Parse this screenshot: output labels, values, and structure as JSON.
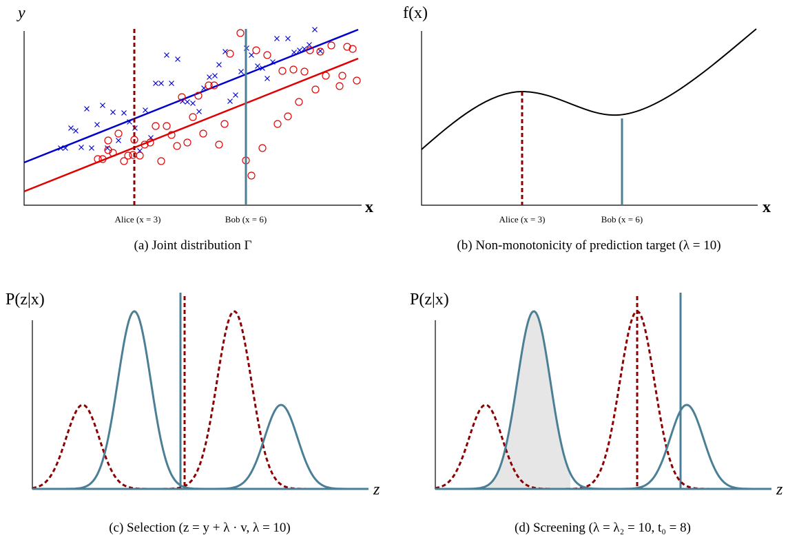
{
  "panels": [
    {
      "ylabel": "y",
      "xlabel": "x",
      "annotations": [
        "Alice (x = 3)",
        "Bob (x = 6)"
      ],
      "caption": "(a)  Joint distribution Γ"
    },
    {
      "ylabel": "f(x)",
      "xlabel": "x",
      "annotations": [
        "Alice (x = 3)",
        "Bob (x = 6)"
      ],
      "caption": "(b)  Non-monotonicity of prediction target (λ = 10)"
    },
    {
      "ylabel": "P(z|x)",
      "xlabel": "z",
      "caption": "(c)  Selection (z = y + λ · v, λ = 10)"
    },
    {
      "ylabel": "P(z|x)",
      "xlabel": "z",
      "caption": "(d)  Screening (λ = λ₂ = 10, t₀ = 8)"
    }
  ]
}
